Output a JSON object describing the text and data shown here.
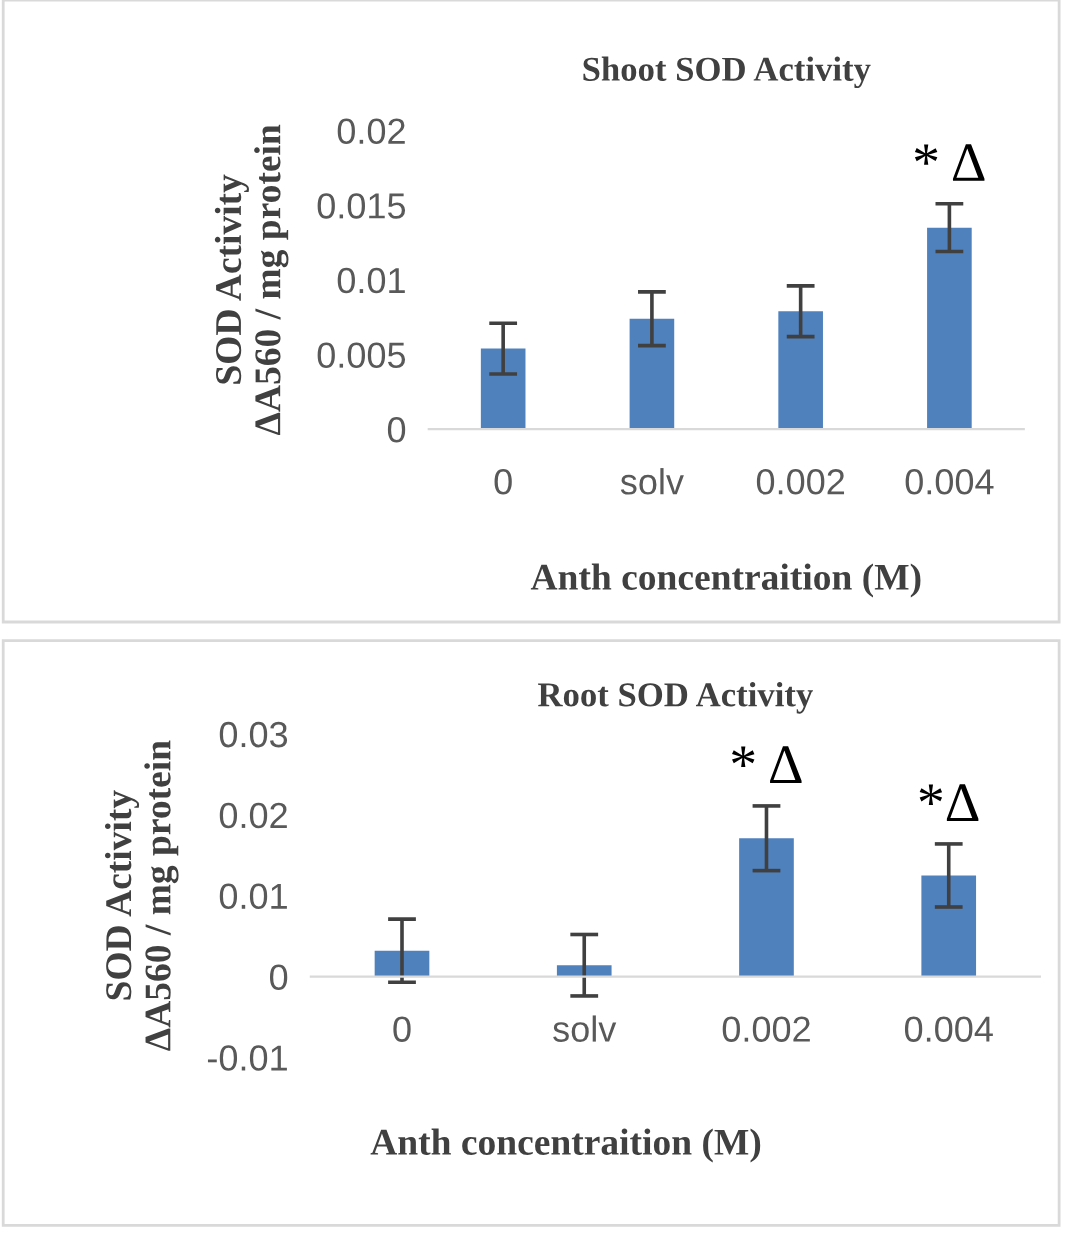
{
  "chart_data": [
    {
      "type": "bar",
      "title": "Shoot SOD Activity",
      "xlabel": "Anth concentraition (M)",
      "ylabel": "SOD Activity\nΔA560 / mg protein",
      "categories": [
        "0",
        "solv",
        "0.002",
        "0.004"
      ],
      "values": [
        0.0054,
        0.0074,
        0.0079,
        0.0135
      ],
      "errors": [
        0.0017,
        0.0018,
        0.0017,
        0.0016
      ],
      "color": "#4f81bd",
      "ylim": [
        0,
        0.02
      ],
      "yticks": [
        {
          "value": 0,
          "label": "0"
        },
        0.005,
        0.01,
        0.015,
        0.02
      ],
      "grid": false,
      "annotations": [
        {
          "text": "* Δ",
          "x": "0.004",
          "y": 0.0151
        }
      ]
    },
    {
      "type": "bar",
      "title": "Root SOD Activity",
      "xlabel": "Anth concentraition (M)",
      "ylabel": "SOD Activity\nΔA560 / mg protein",
      "categories": [
        "0",
        "solv",
        "0.002",
        "0.004"
      ],
      "values": [
        0.0032,
        0.0014,
        0.0171,
        0.0125
      ],
      "errors": [
        0.0039,
        0.0038,
        0.004,
        0.0039
      ],
      "color": "#4f81bd",
      "ylim": [
        -0.01,
        0.03
      ],
      "yticks": [
        -0.01,
        {
          "value": 0,
          "label": "0"
        },
        0.01,
        0.02,
        0.03
      ],
      "grid": false,
      "annotations": [
        {
          "text": "* Δ",
          "x": "0.002",
          "y": 0.0211
        },
        {
          "text": "*Δ",
          "x": "0.004",
          "y": 0.0164
        }
      ]
    }
  ]
}
